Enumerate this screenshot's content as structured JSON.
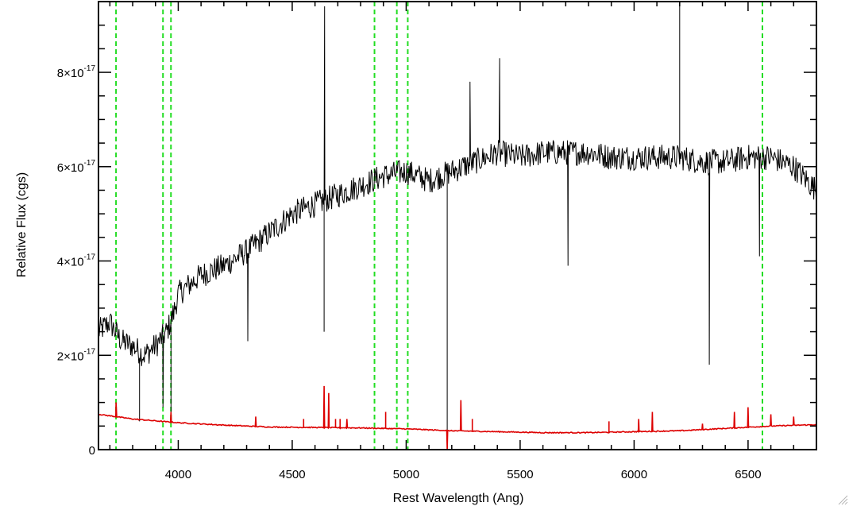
{
  "chart_data": {
    "type": "line",
    "title": "",
    "xlabel": "Rest Wavelength (Ang)",
    "ylabel": "Relative Flux (cgs)",
    "xlim": [
      3650,
      6800
    ],
    "ylim": [
      0,
      9.5e-17
    ],
    "x_ticks": [
      4000,
      4500,
      5000,
      5500,
      6000,
      6500
    ],
    "x_tick_labels": [
      "4000",
      "4500",
      "5000",
      "5500",
      "6000",
      "6500"
    ],
    "y_ticks": [
      0,
      2e-17,
      4e-17,
      6e-17,
      8e-17
    ],
    "y_tick_labels": [
      {
        "mantissa": "0",
        "exponent": ""
      },
      {
        "mantissa": "2×10",
        "exponent": "-17"
      },
      {
        "mantissa": "4×10",
        "exponent": "-17"
      },
      {
        "mantissa": "6×10",
        "exponent": "-17"
      },
      {
        "mantissa": "8×10",
        "exponent": "-17"
      }
    ],
    "vertical_lines": [
      3727,
      3933,
      3968,
      4861,
      4959,
      5007,
      6563
    ],
    "series": [
      {
        "color": "#000000",
        "x": [
          3650,
          3700,
          3750,
          3800,
          3850,
          3900,
          3950,
          3980,
          4000,
          4100,
          4200,
          4300,
          4400,
          4500,
          4600,
          4700,
          4800,
          4900,
          5000,
          5100,
          5200,
          5300,
          5400,
          5500,
          5600,
          5700,
          5800,
          5900,
          6000,
          6100,
          6200,
          6300,
          6400,
          6500,
          6600,
          6700,
          6800
        ],
        "values": [
          2.5e-17,
          2.7e-17,
          2.3e-17,
          2.2e-17,
          2e-17,
          2.2e-17,
          2.5e-17,
          2.9e-17,
          3.3e-17,
          3.7e-17,
          3.9e-17,
          4.2e-17,
          4.6e-17,
          5e-17,
          5.2e-17,
          5.4e-17,
          5.6e-17,
          5.8e-17,
          5.9e-17,
          5.7e-17,
          5.9e-17,
          6.1e-17,
          6.3e-17,
          6.2e-17,
          6.3e-17,
          6.3e-17,
          6.3e-17,
          6.2e-17,
          6.2e-17,
          6.2e-17,
          6.2e-17,
          6.1e-17,
          6.1e-17,
          6.2e-17,
          6.2e-17,
          6e-17,
          5.5e-17
        ],
        "features": [
          {
            "x": 3830,
            "value": 6e-18
          },
          {
            "x": 3933,
            "value": 9e-18
          },
          {
            "x": 3968,
            "value": 7e-18
          },
          {
            "x": 4305,
            "value": 2.3e-17
          },
          {
            "x": 4640,
            "value": 2.5e-17
          },
          {
            "x": 4642,
            "value": 9.4e-17
          },
          {
            "x": 5180,
            "value": 0.0
          },
          {
            "x": 5280,
            "value": 7.8e-17
          },
          {
            "x": 5410,
            "value": 8.3e-17
          },
          {
            "x": 5710,
            "value": 3.9e-17
          },
          {
            "x": 6200,
            "value": 9.5e-17
          },
          {
            "x": 6330,
            "value": 1.8e-17
          },
          {
            "x": 6550,
            "value": 4.1e-17
          }
        ]
      },
      {
        "color": "#dd0000",
        "x": [
          3650,
          3800,
          4000,
          4200,
          4400,
          4600,
          4800,
          5000,
          5200,
          5400,
          5600,
          5800,
          6000,
          6200,
          6400,
          6600,
          6800
        ],
        "values": [
          7.5e-18,
          6.5e-18,
          5.7e-18,
          5.2e-18,
          4.8e-18,
          4.7e-18,
          4.6e-18,
          4.4e-18,
          4e-18,
          3.8e-18,
          3.6e-18,
          3.6e-18,
          3.8e-18,
          4e-18,
          4.5e-18,
          5e-18,
          5.3e-18
        ],
        "features": [
          {
            "x": 3727,
            "value": 1e-17
          },
          {
            "x": 3968,
            "value": 8e-18
          },
          {
            "x": 4340,
            "value": 7e-18
          },
          {
            "x": 4550,
            "value": 6.5e-18
          },
          {
            "x": 4640,
            "value": 1.35e-17
          },
          {
            "x": 4660,
            "value": 1.2e-17
          },
          {
            "x": 4690,
            "value": 6.5e-18
          },
          {
            "x": 4710,
            "value": 6.5e-18
          },
          {
            "x": 4740,
            "value": 6.5e-18
          },
          {
            "x": 4910,
            "value": 8e-18
          },
          {
            "x": 5180,
            "value": -2e-18
          },
          {
            "x": 5240,
            "value": 1.05e-17
          },
          {
            "x": 5290,
            "value": 6.5e-18
          },
          {
            "x": 5890,
            "value": 6e-18
          },
          {
            "x": 6020,
            "value": 6.5e-18
          },
          {
            "x": 6080,
            "value": 8e-18
          },
          {
            "x": 6300,
            "value": 5.5e-18
          },
          {
            "x": 6440,
            "value": 8e-18
          },
          {
            "x": 6500,
            "value": 9e-18
          },
          {
            "x": 6600,
            "value": 7.5e-18
          },
          {
            "x": 6700,
            "value": 7e-18
          }
        ]
      }
    ],
    "colors": {
      "guide": "#22dd22",
      "axes": "#000000",
      "background": "#ffffff"
    },
    "grid": false,
    "legend": "none"
  }
}
